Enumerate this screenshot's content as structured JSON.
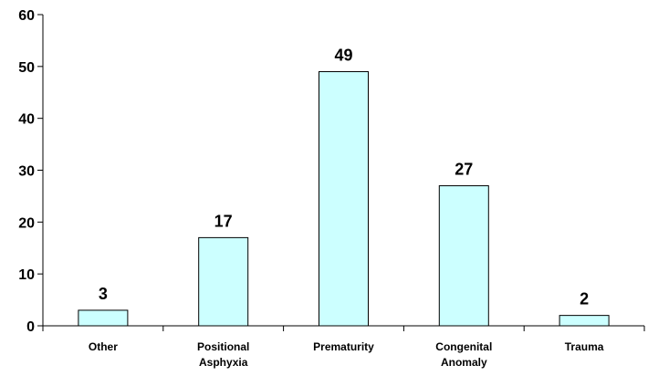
{
  "chart_data": {
    "type": "bar",
    "categories": [
      [
        "Other"
      ],
      [
        "Positional",
        "Asphyxia"
      ],
      [
        "Prematurity"
      ],
      [
        "Congenital",
        "Anomaly"
      ],
      [
        "Trauma"
      ]
    ],
    "values": [
      3,
      17,
      49,
      27,
      2
    ],
    "data_labels": [
      "3",
      "17",
      "49",
      "27",
      "2"
    ],
    "ylim": [
      0,
      60
    ],
    "yticks": [
      "0",
      "10",
      "20",
      "30",
      "40",
      "50",
      "60"
    ],
    "title": "",
    "xlabel": "",
    "ylabel": "",
    "grid": false,
    "legend": "none",
    "colors": {
      "bar_fill": "#ccffff",
      "bar_stroke": "#000000",
      "axis": "#000000"
    }
  }
}
